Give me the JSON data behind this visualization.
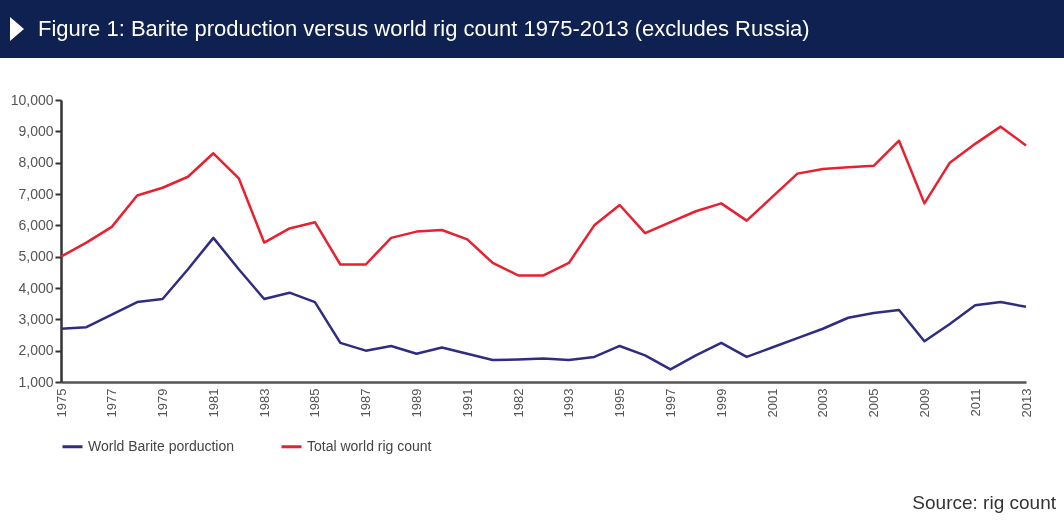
{
  "chart_data": {
    "type": "line",
    "title": "Figure 1: Barite production versus world rig count 1975-2013 (excludes Russia)",
    "categories": [
      "1975",
      null,
      "1977",
      null,
      "1979",
      null,
      "1981",
      null,
      "1983",
      null,
      "1985",
      null,
      "1987",
      null,
      "1989",
      null,
      "1991",
      null,
      "1982",
      null,
      "1993",
      null,
      "1995",
      null,
      "1997",
      null,
      "1999",
      null,
      "2001",
      null,
      "2003",
      null,
      "2005",
      null,
      "2009",
      null,
      "2011",
      null,
      "2013"
    ],
    "series": [
      {
        "name": "World Barite porduction",
        "color": "#2e2d83",
        "values": [
          2700,
          2750,
          3150,
          3550,
          3650,
          4600,
          5600,
          4600,
          3650,
          3850,
          3550,
          2250,
          2000,
          2150,
          1900,
          2100,
          1900,
          1700,
          1720,
          1750,
          1700,
          1800,
          2150,
          1850,
          1400,
          1850,
          2250,
          1800,
          2100,
          2400,
          2700,
          3050,
          3200,
          3300,
          2300,
          2850,
          3450,
          3550,
          3400
        ]
      },
      {
        "name": "Total world rig count",
        "color": "#e8202f",
        "values": [
          5000,
          5450,
          5950,
          6950,
          7200,
          7550,
          8300,
          7500,
          5450,
          5900,
          6100,
          4750,
          4750,
          5600,
          5800,
          5850,
          5550,
          4800,
          4400,
          4400,
          4800,
          6000,
          6650,
          5750,
          6100,
          6450,
          6700,
          6150,
          6900,
          7650,
          7800,
          7850,
          7900,
          8700,
          6700,
          8000,
          8600,
          9150,
          8550
        ]
      }
    ],
    "ylim": [
      1000,
      10000
    ],
    "yticks": [
      {
        "value": 1000,
        "label": "1,000"
      },
      {
        "value": 2000,
        "label": "2,000"
      },
      {
        "value": 3000,
        "label": "3,000"
      },
      {
        "value": 4000,
        "label": "4,000"
      },
      {
        "value": 5000,
        "label": "5,000"
      },
      {
        "value": 6000,
        "label": "6,000"
      },
      {
        "value": 7000,
        "label": "7,000"
      },
      {
        "value": 8000,
        "label": "8,000"
      },
      {
        "value": 9000,
        "label": "9,000"
      },
      {
        "value": 10000,
        "label": "10,000"
      }
    ],
    "grid": false,
    "legend": "bottom",
    "line_style": "solid",
    "marker": "none",
    "annotations": [
      "Source: rig count"
    ]
  }
}
